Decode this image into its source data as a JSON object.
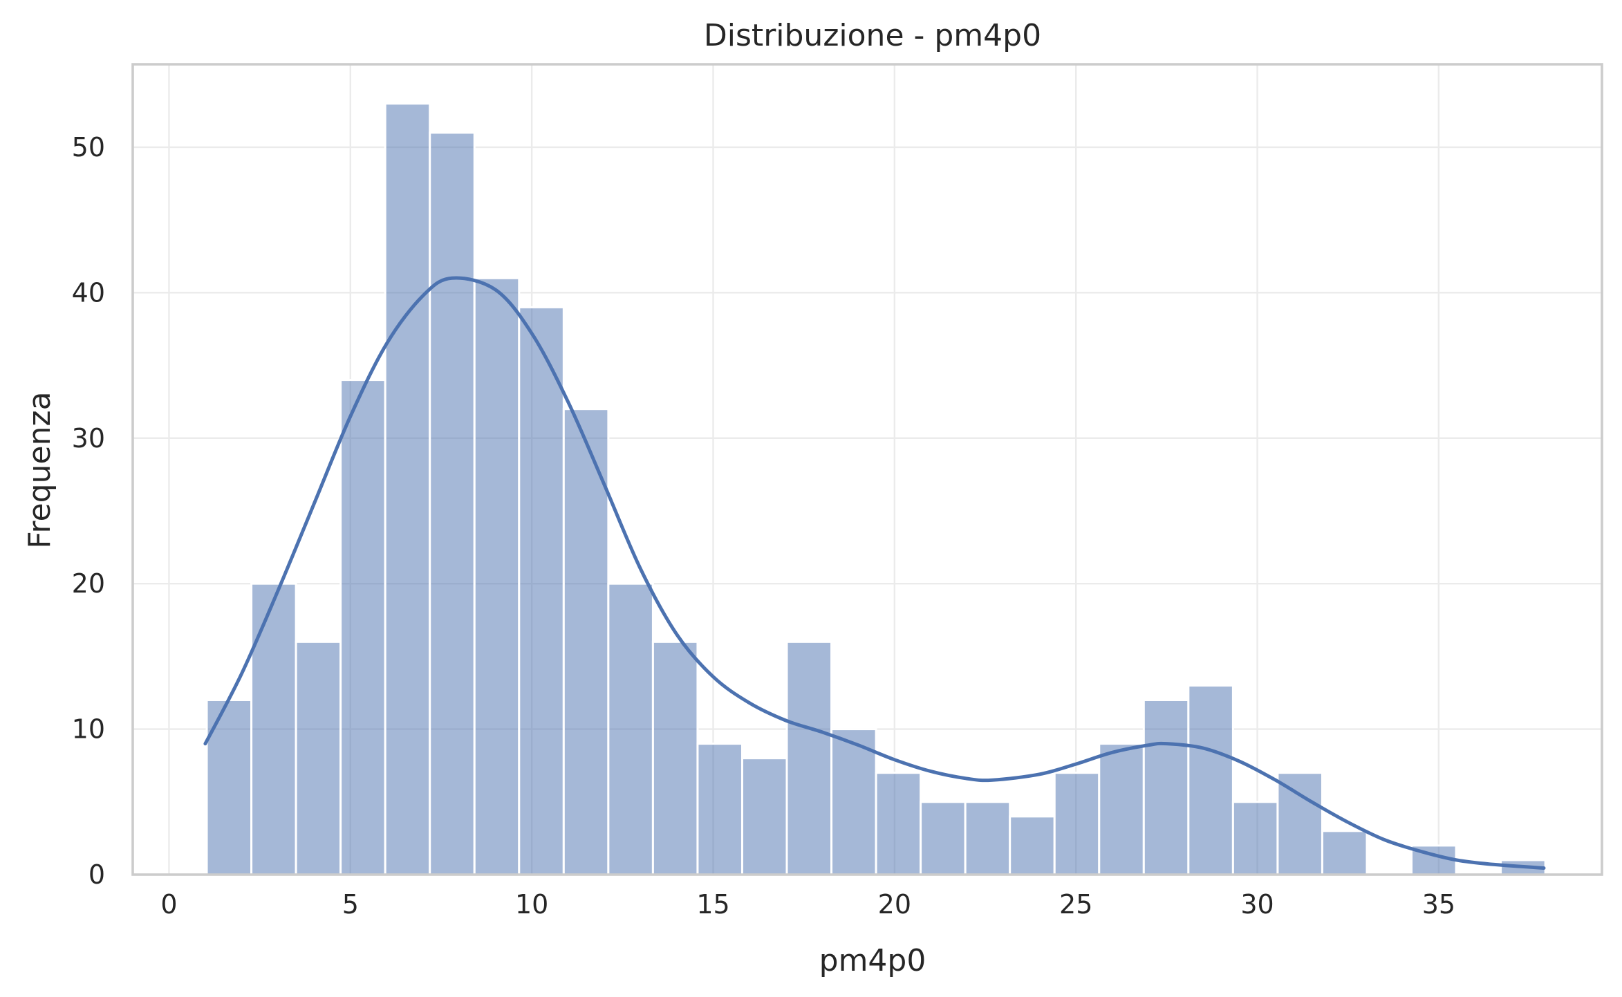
{
  "chart_data": {
    "type": "bar",
    "subtype": "histogram-with-kde",
    "title": "Distribuzione - pm4p0",
    "xlabel": "pm4p0",
    "ylabel": "Frequenza",
    "xlim": [
      -1,
      39.5
    ],
    "ylim": [
      0,
      55.7
    ],
    "xticks": [
      0,
      5,
      10,
      15,
      20,
      25,
      30,
      35
    ],
    "yticks": [
      0,
      10,
      20,
      30,
      40,
      50
    ],
    "grid": true,
    "legend": "none",
    "color": "#4c72b0",
    "bins": [
      {
        "x0": 1.04,
        "x1": 2.27,
        "count": 12
      },
      {
        "x0": 2.27,
        "x1": 3.5,
        "count": 20
      },
      {
        "x0": 3.5,
        "x1": 4.73,
        "count": 16
      },
      {
        "x0": 4.73,
        "x1": 5.96,
        "count": 34
      },
      {
        "x0": 5.96,
        "x1": 7.19,
        "count": 53
      },
      {
        "x0": 7.19,
        "x1": 8.42,
        "count": 51
      },
      {
        "x0": 8.42,
        "x1": 9.65,
        "count": 41
      },
      {
        "x0": 9.65,
        "x1": 10.88,
        "count": 39
      },
      {
        "x0": 10.88,
        "x1": 12.11,
        "count": 32
      },
      {
        "x0": 12.11,
        "x1": 13.34,
        "count": 20
      },
      {
        "x0": 13.34,
        "x1": 14.57,
        "count": 16
      },
      {
        "x0": 14.57,
        "x1": 15.8,
        "count": 9
      },
      {
        "x0": 15.8,
        "x1": 17.03,
        "count": 8
      },
      {
        "x0": 17.03,
        "x1": 18.26,
        "count": 16
      },
      {
        "x0": 18.26,
        "x1": 19.49,
        "count": 10
      },
      {
        "x0": 19.49,
        "x1": 20.72,
        "count": 7
      },
      {
        "x0": 20.72,
        "x1": 21.95,
        "count": 5
      },
      {
        "x0": 21.95,
        "x1": 23.18,
        "count": 5
      },
      {
        "x0": 23.18,
        "x1": 24.41,
        "count": 4
      },
      {
        "x0": 24.41,
        "x1": 25.64,
        "count": 7
      },
      {
        "x0": 25.64,
        "x1": 26.87,
        "count": 9
      },
      {
        "x0": 26.87,
        "x1": 28.1,
        "count": 12
      },
      {
        "x0": 28.1,
        "x1": 29.33,
        "count": 13
      },
      {
        "x0": 29.33,
        "x1": 30.56,
        "count": 5
      },
      {
        "x0": 30.56,
        "x1": 31.79,
        "count": 7
      },
      {
        "x0": 31.79,
        "x1": 33.02,
        "count": 3
      },
      {
        "x0": 33.02,
        "x1": 34.25,
        "count": 0
      },
      {
        "x0": 34.25,
        "x1": 35.48,
        "count": 2
      },
      {
        "x0": 35.48,
        "x1": 36.71,
        "count": 0
      },
      {
        "x0": 36.71,
        "x1": 37.94,
        "count": 1
      }
    ],
    "kde": {
      "x": [
        1.0,
        2.0,
        3.0,
        4.0,
        5.0,
        6.0,
        7.0,
        7.8,
        9.0,
        10.0,
        11.0,
        12.0,
        13.0,
        14.0,
        15.0,
        16.0,
        17.0,
        18.0,
        19.0,
        20.0,
        21.0,
        22.0,
        22.7,
        24.0,
        25.0,
        26.0,
        27.0,
        27.5,
        28.5,
        29.5,
        30.5,
        31.5,
        32.5,
        33.5,
        34.5,
        35.5,
        36.5,
        37.9
      ],
      "y": [
        9.0,
        13.8,
        19.5,
        25.5,
        31.5,
        36.5,
        39.8,
        41.0,
        40.2,
        37.2,
        32.5,
        26.8,
        21.0,
        16.5,
        13.6,
        11.8,
        10.6,
        9.8,
        8.9,
        7.9,
        7.1,
        6.6,
        6.5,
        6.9,
        7.6,
        8.4,
        8.9,
        9.0,
        8.7,
        7.8,
        6.5,
        5.0,
        3.6,
        2.4,
        1.6,
        1.0,
        0.7,
        0.45
      ]
    }
  }
}
